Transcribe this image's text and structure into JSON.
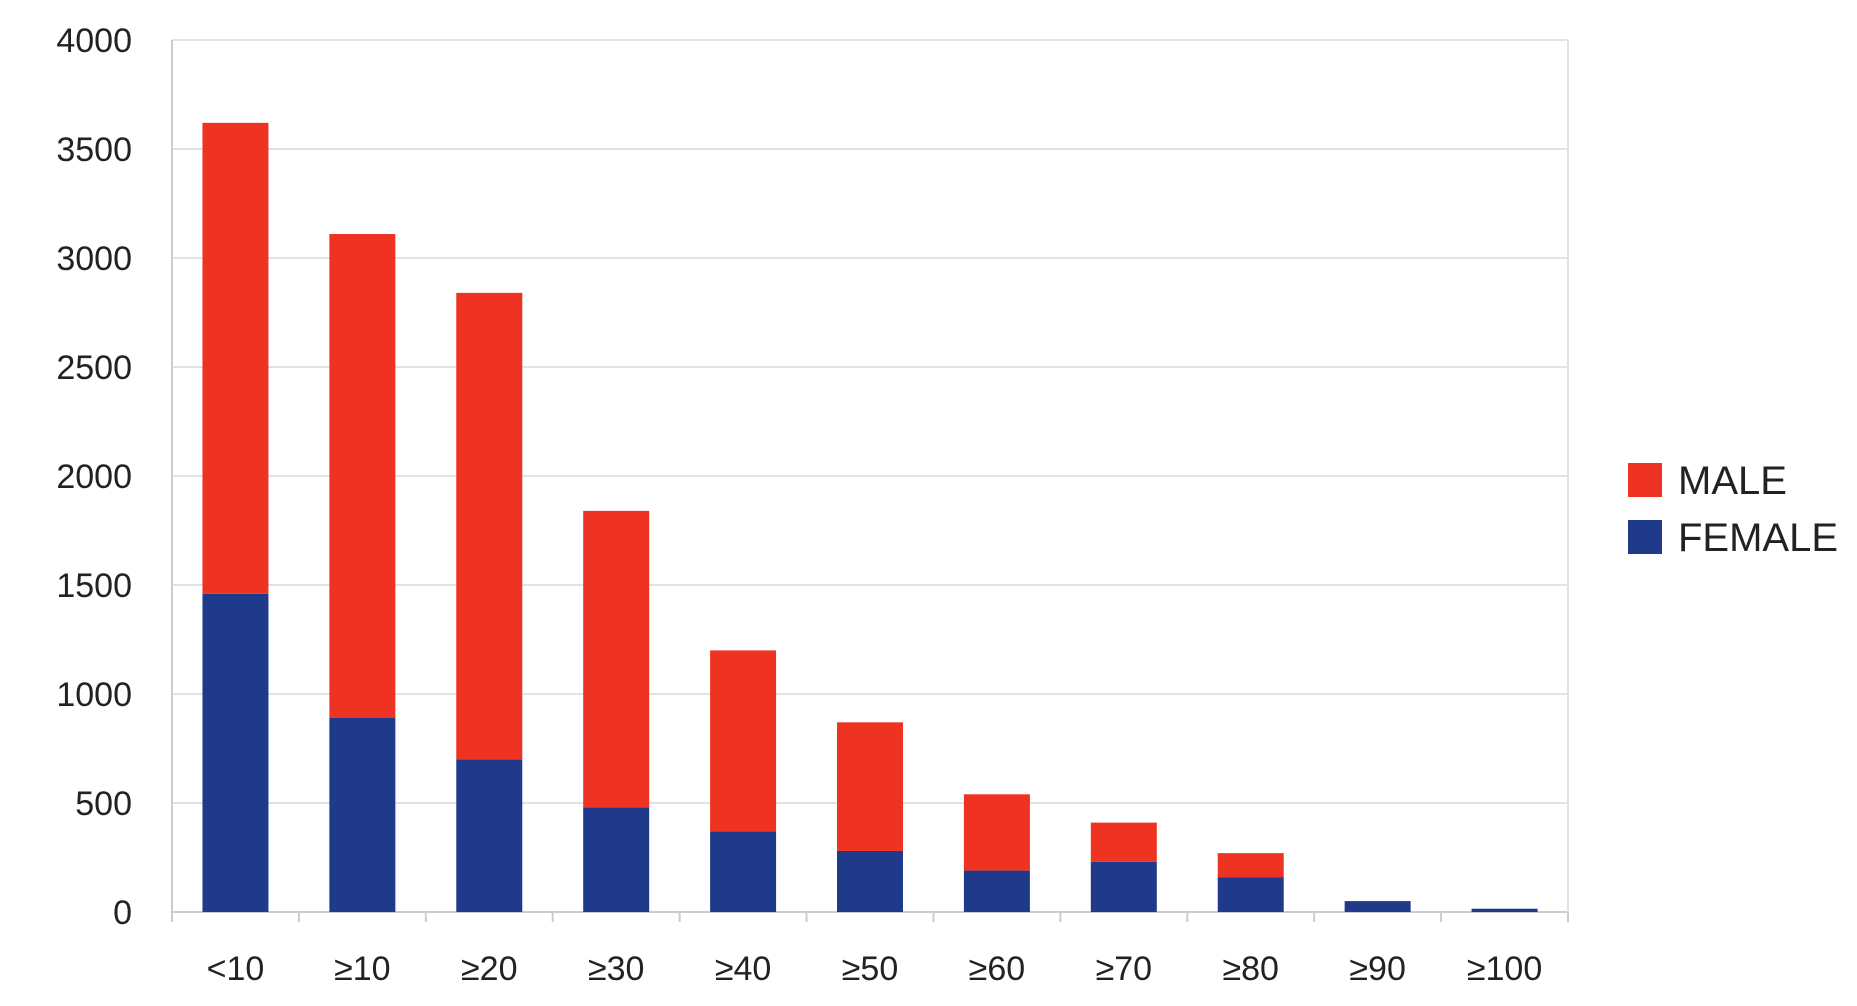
{
  "chart_data": {
    "type": "bar",
    "stacked": true,
    "categories": [
      "<10",
      "≥10",
      "≥20",
      "≥30",
      "≥40",
      "≥50",
      "≥60",
      "≥70",
      "≥80",
      "≥90",
      "≥100"
    ],
    "series": [
      {
        "name": "FEMALE",
        "color": "#1f3a8a",
        "values": [
          1460,
          890,
          700,
          480,
          370,
          280,
          190,
          230,
          160,
          50,
          15
        ]
      },
      {
        "name": "MALE",
        "color": "#ee3322",
        "values": [
          2160,
          2220,
          2140,
          1360,
          830,
          590,
          350,
          180,
          110,
          0,
          0
        ]
      }
    ],
    "yticks": [
      0,
      500,
      1000,
      1500,
      2000,
      2500,
      3000,
      3500,
      4000
    ],
    "ylim": [
      0,
      4000
    ],
    "grid": true,
    "legend": {
      "placement": "right",
      "entries": [
        "MALE",
        "FEMALE"
      ]
    }
  }
}
